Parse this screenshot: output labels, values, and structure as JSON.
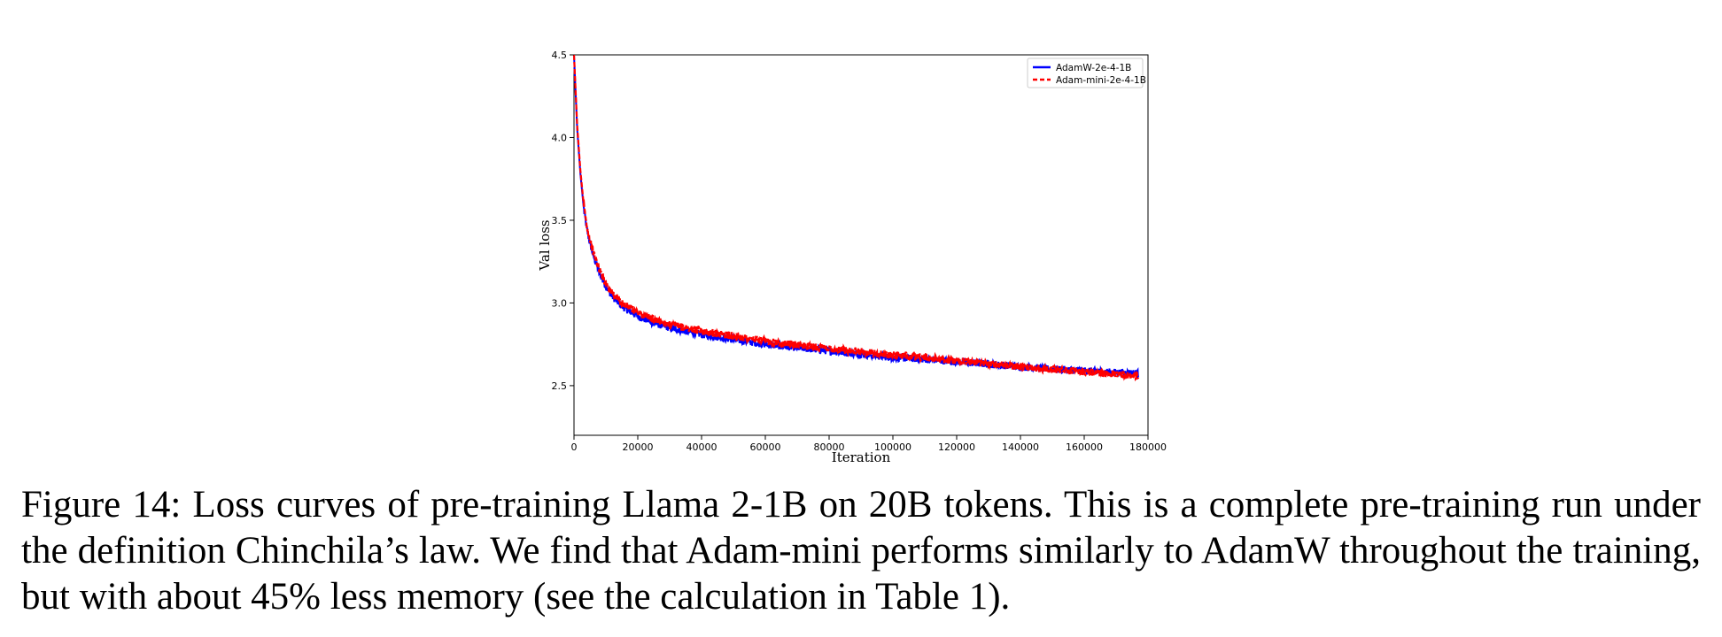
{
  "chart_data": {
    "type": "line",
    "xlabel": "Iteration",
    "ylabel": "Val loss",
    "xlim": [
      0,
      180000
    ],
    "ylim": [
      2.2,
      4.5
    ],
    "xticks": [
      0,
      20000,
      40000,
      60000,
      80000,
      100000,
      120000,
      140000,
      160000,
      180000
    ],
    "yticks": [
      2.5,
      3.0,
      3.5,
      4.0,
      4.5
    ],
    "grid": false,
    "legend_position": "top-right",
    "series": [
      {
        "name": "AdamW-2e-4-1B",
        "color": "#0000ff",
        "style": "solid",
        "x": [
          0,
          1000,
          2000,
          3000,
          4000,
          5000,
          6000,
          8000,
          10000,
          12000,
          15000,
          20000,
          25000,
          30000,
          40000,
          50000,
          60000,
          70000,
          80000,
          90000,
          100000,
          110000,
          120000,
          130000,
          140000,
          150000,
          160000,
          170000,
          177000
        ],
        "y": [
          4.5,
          4.05,
          3.78,
          3.58,
          3.45,
          3.36,
          3.29,
          3.18,
          3.1,
          3.04,
          2.98,
          2.92,
          2.88,
          2.85,
          2.81,
          2.78,
          2.75,
          2.73,
          2.71,
          2.69,
          2.67,
          2.66,
          2.645,
          2.63,
          2.615,
          2.6,
          2.59,
          2.58,
          2.575
        ]
      },
      {
        "name": "Adam-mini-2e-4-1B",
        "color": "#ff0000",
        "style": "dashed",
        "x": [
          0,
          1000,
          2000,
          3000,
          4000,
          5000,
          6000,
          8000,
          10000,
          12000,
          15000,
          20000,
          25000,
          30000,
          40000,
          50000,
          60000,
          70000,
          80000,
          90000,
          100000,
          110000,
          120000,
          130000,
          140000,
          150000,
          160000,
          170000,
          177000
        ],
        "y": [
          4.5,
          4.07,
          3.8,
          3.6,
          3.47,
          3.38,
          3.31,
          3.2,
          3.12,
          3.06,
          3.0,
          2.94,
          2.9,
          2.87,
          2.83,
          2.8,
          2.77,
          2.745,
          2.725,
          2.705,
          2.685,
          2.67,
          2.65,
          2.635,
          2.615,
          2.6,
          2.585,
          2.57,
          2.56
        ]
      }
    ]
  },
  "caption": "Figure 14: Loss curves of pre-training Llama 2-1B on 20B tokens. This is a complete pre-training run under the definition Chinchila’s law. We find that Adam-mini performs similarly to AdamW throughout the training, but with about 45% less memory (see the calculation in Table 1)."
}
